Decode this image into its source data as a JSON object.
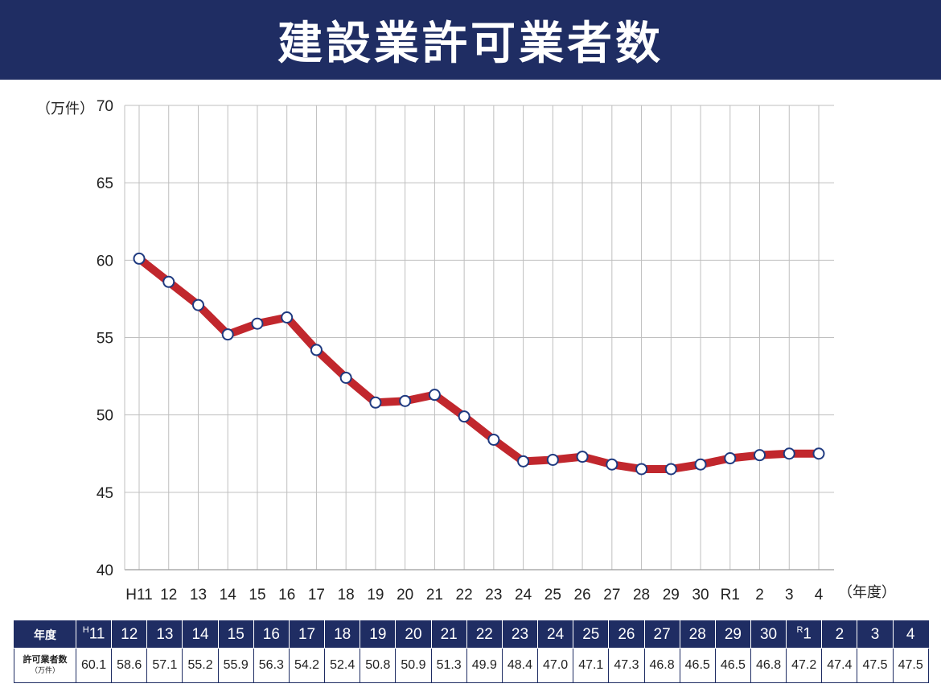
{
  "title": "建設業許可業者数",
  "chart_data": {
    "type": "line",
    "title": "建設業許可業者数",
    "ylabel": "（万件）",
    "xlabel": "（年度）",
    "ylim": [
      40,
      70
    ],
    "yticks": [
      40,
      45,
      50,
      55,
      60,
      65,
      70
    ],
    "grid": true,
    "categories": [
      "H11",
      "12",
      "13",
      "14",
      "15",
      "16",
      "17",
      "18",
      "19",
      "20",
      "21",
      "22",
      "23",
      "24",
      "25",
      "26",
      "27",
      "28",
      "29",
      "30",
      "R1",
      "2",
      "3",
      "4"
    ],
    "values": [
      60.1,
      58.6,
      57.1,
      55.2,
      55.9,
      56.3,
      54.2,
      52.4,
      50.8,
      50.9,
      51.3,
      49.9,
      48.4,
      47.0,
      47.1,
      47.3,
      46.8,
      46.5,
      46.5,
      46.8,
      47.2,
      47.4,
      47.5,
      47.5
    ],
    "line_color": "#c1272d",
    "marker_stroke": "#1f3a80",
    "marker_fill": "#ffffff"
  },
  "table": {
    "header_label": "年度",
    "row_label": "許可業者数",
    "row_unit": "（万件）",
    "years": [
      {
        "era": "H",
        "num": "11"
      },
      {
        "era": "",
        "num": "12"
      },
      {
        "era": "",
        "num": "13"
      },
      {
        "era": "",
        "num": "14"
      },
      {
        "era": "",
        "num": "15"
      },
      {
        "era": "",
        "num": "16"
      },
      {
        "era": "",
        "num": "17"
      },
      {
        "era": "",
        "num": "18"
      },
      {
        "era": "",
        "num": "19"
      },
      {
        "era": "",
        "num": "20"
      },
      {
        "era": "",
        "num": "21"
      },
      {
        "era": "",
        "num": "22"
      },
      {
        "era": "",
        "num": "23"
      },
      {
        "era": "",
        "num": "24"
      },
      {
        "era": "",
        "num": "25"
      },
      {
        "era": "",
        "num": "26"
      },
      {
        "era": "",
        "num": "27"
      },
      {
        "era": "",
        "num": "28"
      },
      {
        "era": "",
        "num": "29"
      },
      {
        "era": "",
        "num": "30"
      },
      {
        "era": "R",
        "num": "1"
      },
      {
        "era": "",
        "num": "2"
      },
      {
        "era": "",
        "num": "3"
      },
      {
        "era": "",
        "num": "4"
      }
    ],
    "values": [
      "60.1",
      "58.6",
      "57.1",
      "55.2",
      "55.9",
      "56.3",
      "54.2",
      "52.4",
      "50.8",
      "50.9",
      "51.3",
      "49.9",
      "48.4",
      "47.0",
      "47.1",
      "47.3",
      "46.8",
      "46.5",
      "46.5",
      "46.8",
      "47.2",
      "47.4",
      "47.5",
      "47.5"
    ]
  }
}
